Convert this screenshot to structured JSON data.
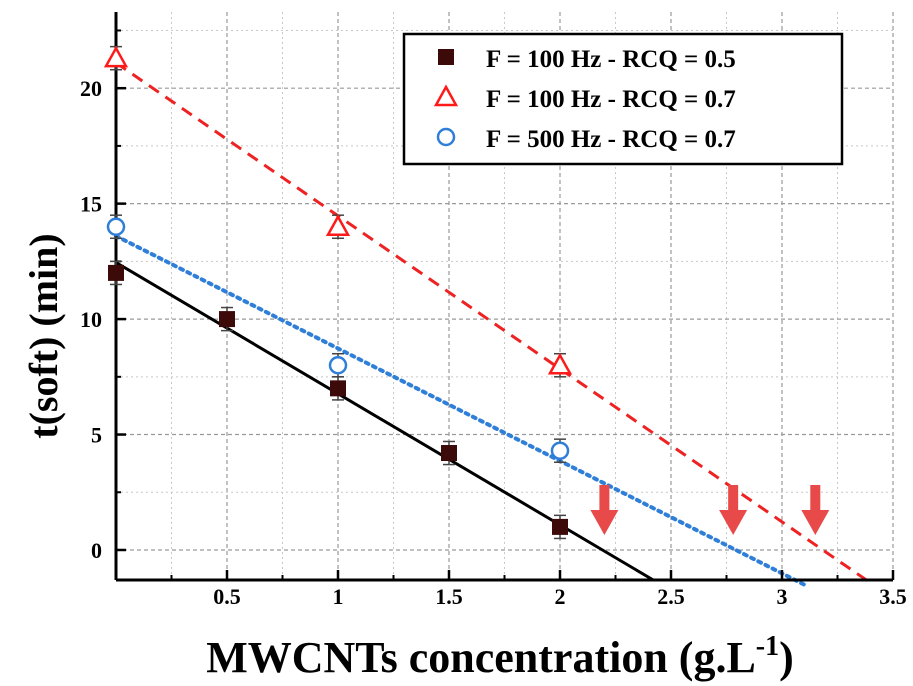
{
  "chart_data": {
    "type": "scatter",
    "xlabel_main": "MWCNTs concentration (g.L",
    "xlabel_sup": "-1",
    "xlabel_end": ")",
    "ylabel": "t(soft) (min)",
    "xlim": [
      0,
      3.5
    ],
    "ylim": [
      -1.3,
      23.3
    ],
    "x_ticks": [
      {
        "value": 0.5,
        "label": "0.5"
      },
      {
        "value": 1,
        "label": "1"
      },
      {
        "value": 1.5,
        "label": "1.5"
      },
      {
        "value": 2,
        "label": "2"
      },
      {
        "value": 2.5,
        "label": "2.5"
      },
      {
        "value": 3,
        "label": "3"
      },
      {
        "value": 3.5,
        "label": "3.5"
      }
    ],
    "y_ticks": [
      {
        "value": 0,
        "label": "0"
      },
      {
        "value": 5,
        "label": "5"
      },
      {
        "value": 10,
        "label": "10"
      },
      {
        "value": 15,
        "label": "15"
      },
      {
        "value": 20,
        "label": "20"
      }
    ],
    "grid": true,
    "legend_position": "top-right",
    "series": [
      {
        "name": "F = 100 Hz - RCQ = 0.5",
        "marker": "square",
        "color": "#3d0a0a",
        "line_color": "#000000",
        "line_style": "solid",
        "x": [
          0,
          0.5,
          1,
          1.5,
          2
        ],
        "y": [
          12.0,
          10.0,
          7.0,
          4.2,
          1.0
        ],
        "err": [
          0.5,
          0.5,
          0.5,
          0.5,
          0.5
        ],
        "fit": [
          [
            0,
            12.45
          ],
          [
            2.42,
            -1.3
          ]
        ]
      },
      {
        "name": "F = 100 Hz - RCQ = 0.7",
        "marker": "triangle",
        "color": "#ff1a1a",
        "line_color": "#ee2222",
        "line_style": "dashed",
        "x": [
          0,
          1,
          2
        ],
        "y": [
          21.3,
          14.0,
          8.0
        ],
        "err": [
          0.5,
          0.5,
          0.5
        ],
        "fit": [
          [
            0,
            21.1
          ],
          [
            3.38,
            -1.3
          ]
        ]
      },
      {
        "name": "F = 500 Hz - RCQ = 0.7",
        "marker": "circle",
        "color": "#2f7fd9",
        "line_color": "#2f7fd9",
        "line_style": "dotted",
        "x": [
          0,
          1,
          2
        ],
        "y": [
          14.0,
          8.0,
          4.3
        ],
        "err": [
          0.5,
          0.5,
          0.5
        ],
        "fit": [
          [
            0,
            13.6
          ],
          [
            3.1,
            -1.5
          ]
        ]
      }
    ],
    "annotations": [
      {
        "type": "down-arrow",
        "x": 2.2,
        "color": "#e84a4a"
      },
      {
        "type": "down-arrow",
        "x": 2.78,
        "color": "#e84a4a"
      },
      {
        "type": "down-arrow",
        "x": 3.15,
        "color": "#e84a4a"
      }
    ]
  }
}
